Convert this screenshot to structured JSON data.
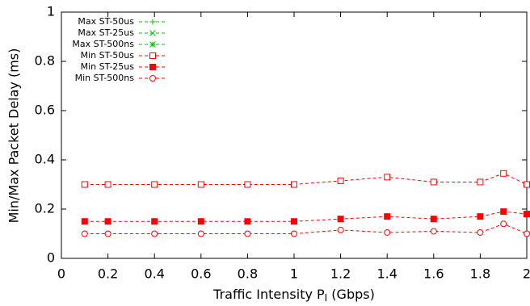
{
  "chart_data": {
    "type": "line",
    "xlabel": {
      "main": "Traffic Intensity P",
      "sub": "I",
      "rest": " (Gbps)"
    },
    "ylabel": "Min/Max Packet Delay (ms)",
    "x": [
      0.1,
      0.2,
      0.4,
      0.6,
      0.8,
      1.0,
      1.2,
      1.4,
      1.6,
      1.8,
      1.9,
      2.0
    ],
    "xlim": [
      0,
      2
    ],
    "xticks": [
      0,
      0.2,
      0.4,
      0.6,
      0.8,
      1,
      1.2,
      1.4,
      1.6,
      1.8,
      2
    ],
    "ylim": [
      0,
      1
    ],
    "yticks": [
      0,
      0.2,
      0.4,
      0.6,
      0.8,
      1
    ],
    "legend": "top-left",
    "series": [
      {
        "name": "Max ST-50us",
        "color": "#00c000",
        "marker": "plus",
        "values": [
          null,
          null,
          null,
          null,
          null,
          null,
          null,
          null,
          null,
          null,
          null,
          null
        ]
      },
      {
        "name": "Max ST-25us",
        "color": "#00c000",
        "marker": "cross",
        "values": [
          null,
          null,
          null,
          null,
          null,
          null,
          null,
          null,
          null,
          null,
          null,
          null
        ]
      },
      {
        "name": "Max ST-500ns",
        "color": "#00c000",
        "marker": "star",
        "values": [
          null,
          null,
          null,
          null,
          null,
          null,
          null,
          null,
          null,
          null,
          null,
          null
        ]
      },
      {
        "name": "Min ST-50us",
        "color": "#ff0000",
        "marker": "square-open",
        "values": [
          0.3,
          0.3,
          0.3,
          0.3,
          0.3,
          0.3,
          0.315,
          0.33,
          0.31,
          0.31,
          0.345,
          0.3
        ]
      },
      {
        "name": "Min ST-25us",
        "color": "#ff0000",
        "marker": "square-filled",
        "values": [
          0.15,
          0.15,
          0.15,
          0.15,
          0.15,
          0.15,
          0.16,
          0.17,
          0.16,
          0.17,
          0.19,
          0.18
        ]
      },
      {
        "name": "Min ST-500ns",
        "color": "#ff0000",
        "marker": "circle-open",
        "values": [
          0.1,
          0.1,
          0.1,
          0.1,
          0.1,
          0.1,
          0.115,
          0.105,
          0.11,
          0.105,
          0.14,
          0.1
        ]
      }
    ]
  }
}
